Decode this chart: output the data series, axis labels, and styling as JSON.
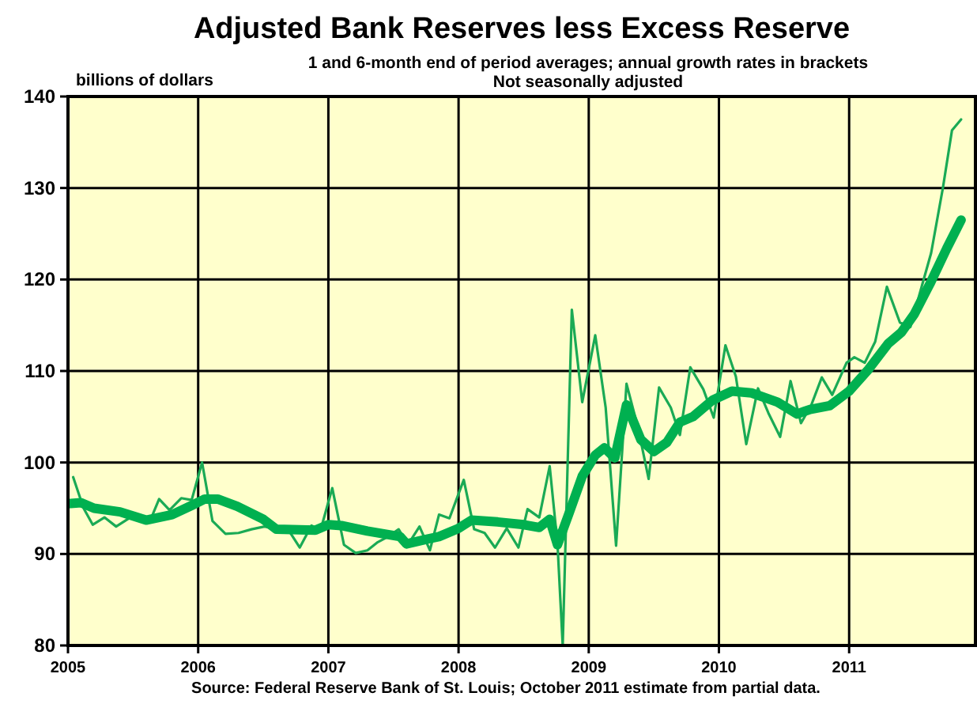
{
  "chart_data": {
    "type": "line",
    "title": "Adjusted Bank Reserves less Excess Reserve",
    "subtitle": "1 and 6-month end of period averages; annual growth rates in brackets",
    "ylabel": "billions of dollars",
    "annotations": [
      "Not seasonally adjusted",
      "Source: Federal Reserve Bank of St. Louis; October 2011 estimate from partial data."
    ],
    "xlim": [
      2005,
      2011.97
    ],
    "xticks": [
      2005,
      2006,
      2007,
      2008,
      2009,
      2010,
      2011
    ],
    "ylim": [
      80,
      140
    ],
    "yticks": [
      80,
      90,
      100,
      110,
      120,
      130,
      140
    ],
    "grid": true,
    "line_style": "solid",
    "marker": "none",
    "series": [
      {
        "color": "#1aaa55",
        "x": [
          2005.04,
          2005.12,
          2005.19,
          2005.28,
          2005.37,
          2005.47,
          2005.55,
          2005.63,
          2005.7,
          2005.78,
          2005.87,
          2005.95,
          2006.03,
          2006.11,
          2006.21,
          2006.31,
          2006.41,
          2006.51,
          2006.61,
          2006.69,
          2006.78,
          2006.87,
          2006.94,
          2007.03,
          2007.12,
          2007.21,
          2007.3,
          2007.38,
          2007.46,
          2007.54,
          2007.61,
          2007.7,
          2007.78,
          2007.85,
          2007.93,
          2008.04,
          2008.12,
          2008.2,
          2008.28,
          2008.37,
          2008.46,
          2008.53,
          2008.62,
          2008.7,
          2008.76,
          2008.8,
          2008.87,
          2008.95,
          2009.05,
          2009.13,
          2009.21,
          2009.29,
          2009.38,
          2009.46,
          2009.54,
          2009.63,
          2009.7,
          2009.78,
          2009.88,
          2009.96,
          2010.05,
          2010.13,
          2010.21,
          2010.3,
          2010.38,
          2010.47,
          2010.55,
          2010.63,
          2010.71,
          2010.79,
          2010.87,
          2010.98,
          2011.04,
          2011.12,
          2011.2,
          2011.29,
          2011.39,
          2011.47,
          2011.63,
          2011.72,
          2011.79,
          2011.86
        ],
        "values": [
          98.4,
          95,
          93.2,
          94,
          93,
          93.9,
          93.8,
          93.6,
          96,
          94.8,
          96.1,
          95.9,
          100,
          93.6,
          92.2,
          92.3,
          92.7,
          93,
          92.7,
          92.7,
          90.7,
          93.1,
          92.6,
          97.2,
          91,
          90.1,
          90.4,
          91.3,
          91.9,
          92.7,
          91,
          93,
          90.4,
          94.3,
          93.9,
          98.1,
          92.7,
          92.3,
          90.7,
          92.8,
          90.7,
          94.9,
          94,
          99.6,
          91.1,
          80,
          116.7,
          106.6,
          113.9,
          106,
          90.9,
          108.6,
          103.7,
          98.2,
          108.2,
          106,
          103,
          110.4,
          108,
          104.9,
          112.8,
          109.4,
          102,
          108.1,
          105.4,
          102.8,
          108.9,
          104.3,
          106.3,
          109.3,
          107.4,
          110.9,
          111.5,
          110.9,
          113.2,
          119.2,
          115.3,
          114.8,
          122.9,
          130,
          136.3,
          137.5
        ]
      },
      {
        "color": "#00b050",
        "x": [
          2005,
          2005.1,
          2005.2,
          2005.4,
          2005.6,
          2005.8,
          2005.95,
          2006.05,
          2006.15,
          2006.3,
          2006.5,
          2006.6,
          2006.9,
          2007,
          2007.1,
          2007.3,
          2007.55,
          2007.6,
          2007.75,
          2007.85,
          2008,
          2008.1,
          2008.3,
          2008.5,
          2008.62,
          2008.7,
          2008.76,
          2008.85,
          2008.95,
          2009.05,
          2009.12,
          2009.2,
          2009.29,
          2009.4,
          2009.5,
          2009.6,
          2009.7,
          2009.8,
          2009.95,
          2010.1,
          2010.25,
          2010.45,
          2010.6,
          2010.7,
          2010.85,
          2011,
          2011.15,
          2011.3,
          2011.4,
          2011.5,
          2011.62,
          2011.75,
          2011.86
        ],
        "values": [
          95.5,
          95.6,
          95,
          94.6,
          93.7,
          94.3,
          95.3,
          96,
          96,
          95.2,
          93.8,
          92.7,
          92.6,
          93.2,
          93.1,
          92.5,
          91.9,
          91.1,
          91.6,
          91.9,
          92.8,
          93.7,
          93.5,
          93.2,
          92.9,
          93.8,
          91,
          94.5,
          98.5,
          100.8,
          101.6,
          100.5,
          106.3,
          102.5,
          101.2,
          102.2,
          104.4,
          105,
          106.8,
          107.8,
          107.6,
          106.6,
          105.3,
          105.8,
          106.2,
          107.8,
          110.2,
          113,
          114.2,
          116.2,
          119.5,
          123.4,
          126.5
        ]
      }
    ]
  }
}
